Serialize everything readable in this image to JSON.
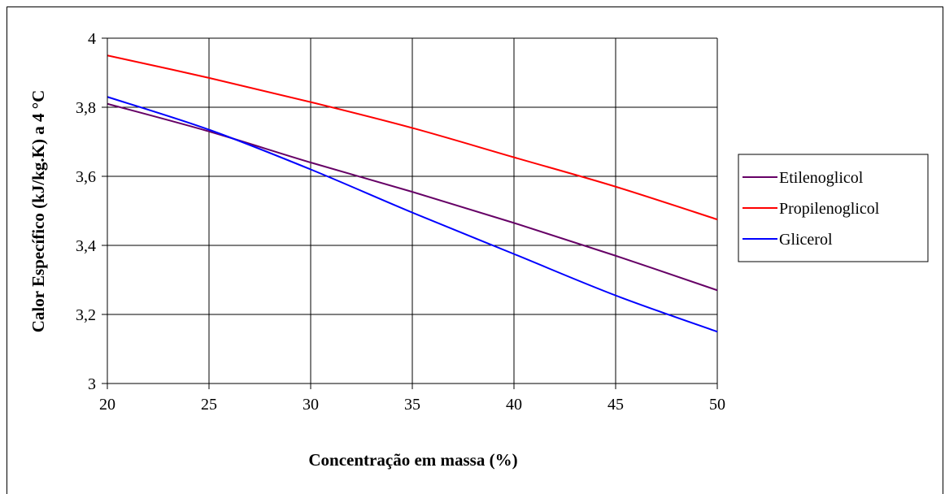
{
  "chart_data": {
    "type": "line",
    "xlabel": "Concentração em massa (%)",
    "ylabel": "Calor Específico (kJ/kg.K) a 4 °C",
    "xlim": [
      20,
      50
    ],
    "ylim": [
      3,
      4
    ],
    "x_ticks": [
      "20",
      "25",
      "30",
      "35",
      "40",
      "45",
      "50"
    ],
    "y_ticks": [
      "3",
      "3,2",
      "3,4",
      "3,6",
      "3,8",
      "4"
    ],
    "grid": true,
    "legend_position": "right",
    "x": [
      20,
      25,
      30,
      35,
      40,
      45,
      50
    ],
    "series": [
      {
        "name": "Etilenoglicol",
        "color": "#660066",
        "values": [
          3.81,
          3.73,
          3.64,
          3.555,
          3.465,
          3.37,
          3.27
        ]
      },
      {
        "name": "Propilenoglicol",
        "color": "#ff0000",
        "values": [
          3.95,
          3.885,
          3.815,
          3.74,
          3.655,
          3.57,
          3.475
        ]
      },
      {
        "name": "Glicerol",
        "color": "#0000ff",
        "values": [
          3.83,
          3.735,
          3.62,
          3.495,
          3.375,
          3.255,
          3.15
        ]
      }
    ]
  }
}
